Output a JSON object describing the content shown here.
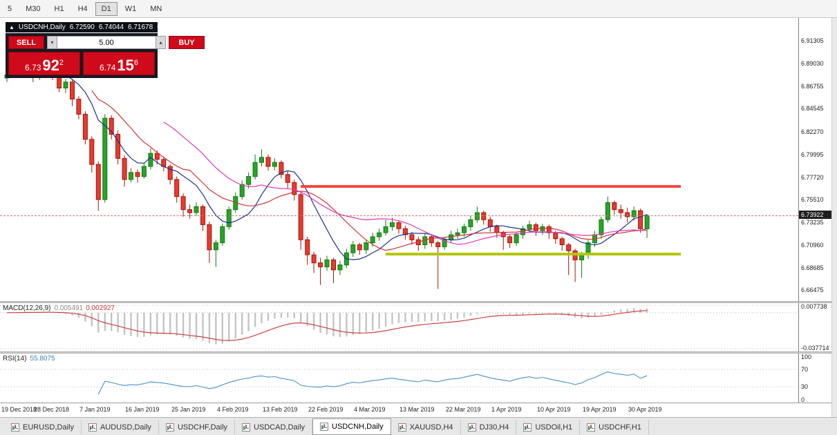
{
  "toolbar": {
    "timeframes": [
      {
        "label": "5",
        "active": false
      },
      {
        "label": "M30",
        "active": false
      },
      {
        "label": "H1",
        "active": false
      },
      {
        "label": "H4",
        "active": false
      },
      {
        "label": "D1",
        "active": true
      },
      {
        "label": "W1",
        "active": false
      },
      {
        "label": "MN",
        "active": false
      }
    ]
  },
  "chart_info": {
    "collapse_icon": "▲",
    "symbol": "USDCNH,Daily",
    "open": "6.72590",
    "high": "6.74044",
    "low": "6.71678",
    "close": "6.73922"
  },
  "oct": {
    "sell_label": "SELL",
    "buy_label": "BUY",
    "volume": "5.00",
    "bid_small": "6.73",
    "bid_big": "92",
    "bid_sup": "2",
    "ask_small": "6.74",
    "ask_big": "15",
    "ask_sup": "6"
  },
  "tabs": [
    {
      "label": "EURUSD,Daily",
      "active": false
    },
    {
      "label": "AUDUSD,Daily",
      "active": false
    },
    {
      "label": "USDCHF,Daily",
      "active": false
    },
    {
      "label": "USDCAD,Daily",
      "active": false
    },
    {
      "label": "USDCNH,Daily",
      "active": true
    },
    {
      "label": "XAUUSD,H4",
      "active": false
    },
    {
      "label": "DJ30,H4",
      "active": false
    },
    {
      "label": "USDOil,H1",
      "active": false
    },
    {
      "label": "USDCHF,H1",
      "active": false
    }
  ],
  "colors": {
    "candle_up": "#29a329",
    "candle_up_stroke": "#0f7a12",
    "candle_down": "#e73a30",
    "candle_down_stroke": "#a31408",
    "ma_fast": "#20308f",
    "ma_mid": "#cf3434",
    "ma_slow": "#e136b8",
    "resistance": "#f44a3c",
    "support": "#b5c606",
    "macd_hist": "#c4c4c4",
    "macd_signal": "#c94040",
    "rsi": "#4792c6",
    "trade_red": "#cf0a1a",
    "panel_dark": "#171923",
    "badge_bg": "#1e1e1e"
  },
  "chart_data": {
    "type": "candlestick",
    "title": "USDCNH,Daily",
    "symbol": "USDCNH",
    "timeframe": "Daily",
    "ylim": [
      6.654,
      6.9358
    ],
    "y_tick_labels": [
      "6.91305",
      "6.89030",
      "6.86755",
      "6.84545",
      "6.82270",
      "6.79995",
      "6.77720",
      "6.75510",
      "6.73235",
      "6.70960",
      "6.68685",
      "6.66475"
    ],
    "x_tick_labels": [
      "19 Dec 2018",
      "28 Dec 2018",
      "7 Jan 2019",
      "16 Jan 2019",
      "25 Jan 2019",
      "4 Feb 2019",
      "13 Feb 2019",
      "22 Feb 2019",
      "4 Mar 2019",
      "13 Mar 2019",
      "22 Mar 2019",
      "1 Apr 2019",
      "10 Apr 2019",
      "19 Apr 2019",
      "30 Apr 2019"
    ],
    "x_label_step": 7,
    "ohlc": [
      [
        6.876,
        6.884,
        6.872,
        6.879
      ],
      [
        6.879,
        6.888,
        6.876,
        6.883
      ],
      [
        6.883,
        6.89,
        6.879,
        6.886
      ],
      [
        6.886,
        6.889,
        6.877,
        6.881
      ],
      [
        6.881,
        6.885,
        6.872,
        6.877
      ],
      [
        6.877,
        6.886,
        6.874,
        6.882
      ],
      [
        6.882,
        6.889,
        6.878,
        6.885
      ],
      [
        6.885,
        6.888,
        6.874,
        6.879
      ],
      [
        6.879,
        6.882,
        6.862,
        6.866
      ],
      [
        6.866,
        6.875,
        6.861,
        6.872
      ],
      [
        6.872,
        6.874,
        6.848,
        6.855
      ],
      [
        6.855,
        6.858,
        6.835,
        6.84
      ],
      [
        6.84,
        6.843,
        6.81,
        6.815
      ],
      [
        6.815,
        6.818,
        6.782,
        6.79
      ],
      [
        6.79,
        6.793,
        6.744,
        6.755
      ],
      [
        6.755,
        6.84,
        6.752,
        6.836
      ],
      [
        6.836,
        6.839,
        6.815,
        6.82
      ],
      [
        6.82,
        6.824,
        6.79,
        6.796
      ],
      [
        6.796,
        6.799,
        6.768,
        6.775
      ],
      [
        6.775,
        6.786,
        6.772,
        6.782
      ],
      [
        6.782,
        6.785,
        6.772,
        6.778
      ],
      [
        6.778,
        6.792,
        6.776,
        6.788
      ],
      [
        6.788,
        6.806,
        6.785,
        6.801
      ],
      [
        6.801,
        6.804,
        6.79,
        6.795
      ],
      [
        6.795,
        6.798,
        6.783,
        6.788
      ],
      [
        6.788,
        6.79,
        6.77,
        6.775
      ],
      [
        6.775,
        6.778,
        6.752,
        6.758
      ],
      [
        6.758,
        6.761,
        6.738,
        6.745
      ],
      [
        6.745,
        6.75,
        6.736,
        6.742
      ],
      [
        6.742,
        6.752,
        6.739,
        6.748
      ],
      [
        6.748,
        6.75,
        6.724,
        6.73
      ],
      [
        6.73,
        6.733,
        6.692,
        6.705
      ],
      [
        6.705,
        6.715,
        6.688,
        6.712
      ],
      [
        6.712,
        6.731,
        6.709,
        6.728
      ],
      [
        6.728,
        6.748,
        6.725,
        6.745
      ],
      [
        6.745,
        6.762,
        6.742,
        6.758
      ],
      [
        6.758,
        6.774,
        6.755,
        6.77
      ],
      [
        6.77,
        6.782,
        6.766,
        6.778
      ],
      [
        6.778,
        6.8,
        6.775,
        6.792
      ],
      [
        6.792,
        6.805,
        6.788,
        6.797
      ],
      [
        6.797,
        6.8,
        6.784,
        6.788
      ],
      [
        6.788,
        6.796,
        6.784,
        6.792
      ],
      [
        6.792,
        6.794,
        6.776,
        6.78
      ],
      [
        6.78,
        6.783,
        6.766,
        6.772
      ],
      [
        6.772,
        6.775,
        6.754,
        6.76
      ],
      [
        6.76,
        6.762,
        6.705,
        6.715
      ],
      [
        6.715,
        6.718,
        6.69,
        6.7
      ],
      [
        6.7,
        6.703,
        6.682,
        6.692
      ],
      [
        6.692,
        6.697,
        6.67,
        6.688
      ],
      [
        6.688,
        6.699,
        6.684,
        6.695
      ],
      [
        6.695,
        6.697,
        6.672,
        6.685
      ],
      [
        6.685,
        6.694,
        6.68,
        6.69
      ],
      [
        6.69,
        6.706,
        6.687,
        6.702
      ],
      [
        6.702,
        6.714,
        6.698,
        6.71
      ],
      [
        6.71,
        6.712,
        6.7,
        6.705
      ],
      [
        6.705,
        6.715,
        6.701,
        6.712
      ],
      [
        6.712,
        6.722,
        6.708,
        6.718
      ],
      [
        6.718,
        6.726,
        6.714,
        6.722
      ],
      [
        6.722,
        6.735,
        6.719,
        6.728
      ],
      [
        6.728,
        6.737,
        6.724,
        6.732
      ],
      [
        6.732,
        6.734,
        6.721,
        6.726
      ],
      [
        6.726,
        6.729,
        6.715,
        6.72
      ],
      [
        6.72,
        6.723,
        6.71,
        6.715
      ],
      [
        6.715,
        6.718,
        6.704,
        6.71
      ],
      [
        6.71,
        6.721,
        6.706,
        6.718
      ],
      [
        6.718,
        6.72,
        6.708,
        6.712
      ],
      [
        6.712,
        6.714,
        6.666,
        6.708
      ],
      [
        6.708,
        6.718,
        6.705,
        6.715
      ],
      [
        6.715,
        6.724,
        6.712,
        6.72
      ],
      [
        6.72,
        6.726,
        6.716,
        6.722
      ],
      [
        6.722,
        6.731,
        6.718,
        6.728
      ],
      [
        6.728,
        6.739,
        6.724,
        6.735
      ],
      [
        6.735,
        6.748,
        6.732,
        6.742
      ],
      [
        6.742,
        6.744,
        6.73,
        6.735
      ],
      [
        6.735,
        6.738,
        6.723,
        6.728
      ],
      [
        6.728,
        6.73,
        6.717,
        6.722
      ],
      [
        6.722,
        6.724,
        6.705,
        6.718
      ],
      [
        6.718,
        6.72,
        6.707,
        6.712
      ],
      [
        6.712,
        6.723,
        6.709,
        6.72
      ],
      [
        6.72,
        6.729,
        6.716,
        6.726
      ],
      [
        6.726,
        6.734,
        6.722,
        6.73
      ],
      [
        6.73,
        6.732,
        6.719,
        6.724
      ],
      [
        6.724,
        6.731,
        6.72,
        6.728
      ],
      [
        6.728,
        6.73,
        6.716,
        6.722
      ],
      [
        6.722,
        6.724,
        6.711,
        6.716
      ],
      [
        6.716,
        6.718,
        6.704,
        6.71
      ],
      [
        6.71,
        6.712,
        6.68,
        6.704
      ],
      [
        6.704,
        6.706,
        6.673,
        6.695
      ],
      [
        6.695,
        6.703,
        6.677,
        6.7
      ],
      [
        6.7,
        6.715,
        6.696,
        6.712
      ],
      [
        6.712,
        6.724,
        6.708,
        6.72
      ],
      [
        6.72,
        6.738,
        6.716,
        6.735
      ],
      [
        6.735,
        6.758,
        6.732,
        6.752
      ],
      [
        6.752,
        6.754,
        6.74,
        6.745
      ],
      [
        6.745,
        6.75,
        6.736,
        6.742
      ],
      [
        6.742,
        6.747,
        6.732,
        6.738
      ],
      [
        6.738,
        6.748,
        6.734,
        6.744
      ],
      [
        6.744,
        6.746,
        6.722,
        6.726
      ],
      [
        6.7259,
        6.74044,
        6.71678,
        6.73922
      ]
    ],
    "moving_averages": [
      {
        "period": 8,
        "color_key": "ma_fast"
      },
      {
        "period": 14,
        "color_key": "ma_mid"
      },
      {
        "period": 25,
        "color_key": "ma_slow"
      }
    ],
    "levels": {
      "resistance": 6.768,
      "support": 6.701,
      "current": 6.73922,
      "current_text": "6.73922"
    },
    "macd": {
      "label": "MACD(12,26,9)",
      "fast": 12,
      "slow": 26,
      "signal": 9,
      "value_main": "0.005491",
      "value_signal": "0.002927",
      "range": [
        -0.0403,
        0.01
      ],
      "ticks": [
        {
          "text": "0.007738",
          "value": 0.007738
        },
        {
          "text": "-0.037714",
          "value": -0.037714
        }
      ]
    },
    "rsi": {
      "label": "RSI(14)",
      "period": 14,
      "value": "55.8075",
      "range": [
        0,
        100
      ],
      "levels": [
        70,
        30
      ],
      "ticks": [
        {
          "text": "100",
          "value": 100
        },
        {
          "text": "70",
          "value": 70
        },
        {
          "text": "30",
          "value": 30
        },
        {
          "text": "0",
          "value": 0
        }
      ]
    }
  }
}
